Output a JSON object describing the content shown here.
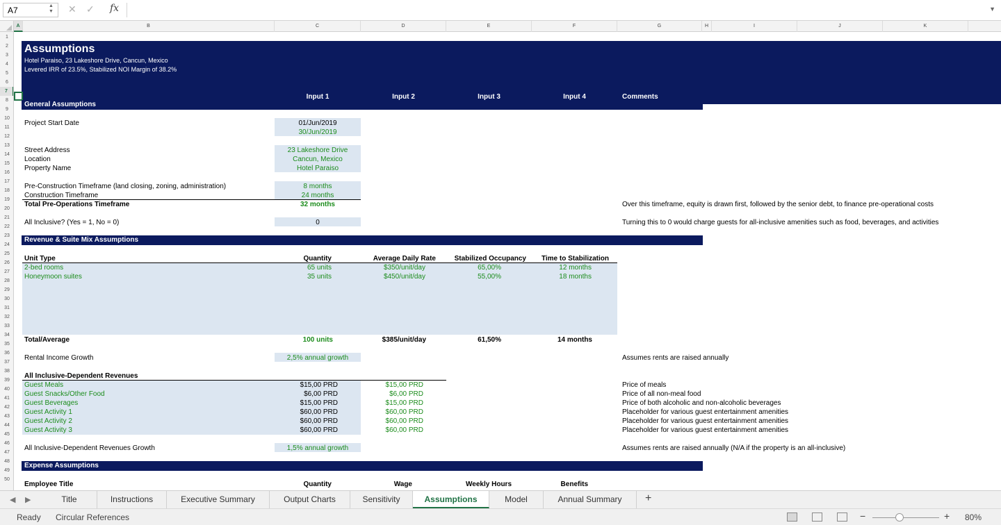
{
  "formula_bar": {
    "name_box": "A7",
    "fx": "fx",
    "cancel": "✕",
    "confirm": "✓"
  },
  "columns": [
    "A",
    "B",
    "C",
    "D",
    "E",
    "F",
    "G",
    "H",
    "I",
    "J",
    "K"
  ],
  "rows": [
    "1",
    "2",
    "3",
    "4",
    "5",
    "6",
    "7",
    "8",
    "9",
    "10",
    "11",
    "12",
    "13",
    "14",
    "15",
    "16",
    "17",
    "18",
    "19",
    "20",
    "21",
    "22",
    "23",
    "24",
    "25",
    "26",
    "27",
    "28",
    "29",
    "30",
    "31",
    "32",
    "33",
    "34",
    "35",
    "36",
    "37",
    "38",
    "39",
    "40",
    "41",
    "42",
    "43",
    "44",
    "45",
    "46",
    "47",
    "48",
    "49",
    "50"
  ],
  "header": {
    "title": "Assumptions",
    "subtitle1": "Hotel Paraiso, 23 Lakeshore Drive, Cancun, Mexico",
    "subtitle2": "Levered IRR of 23.5%, Stabilized NOI Margin of 38.2%",
    "input1": "Input 1",
    "input2": "Input 2",
    "input3": "Input 3",
    "input4": "Input 4",
    "comments": "Comments"
  },
  "general": {
    "section": "General Assumptions",
    "project_start_label": "Project Start Date",
    "project_start": "01/Jun/2019",
    "project_start2": "30/Jun/2019",
    "street_label": "Street Address",
    "street": "23 Lakeshore Drive",
    "location_label": "Location",
    "location": "Cancun, Mexico",
    "property_label": "Property Name",
    "property": "Hotel Paraiso",
    "precon_label": "Pre-Construction Timeframe (land closing, zoning, administration)",
    "precon": "8 months",
    "con_label": "Construction Timeframe",
    "con": "24 months",
    "total_preop_label": "Total Pre-Operations Timeframe",
    "total_preop": "32 months",
    "total_preop_comment": "Over this timeframe, equity is drawn first, followed by the senior debt, to finance pre-operational costs",
    "allinc_label": "All Inclusive? (Yes = 1, No = 0)",
    "allinc": "0",
    "allinc_comment": "Turning this to 0 would charge guests for all-inclusive amenities such as food, beverages, and activities"
  },
  "revenue": {
    "section": "Revenue & Suite Mix Assumptions",
    "h_unit": "Unit Type",
    "h_qty": "Quantity",
    "h_adr": "Average Daily Rate",
    "h_occ": "Stabilized Occupancy",
    "h_time": "Time to Stabilization",
    "units": [
      {
        "type": "2-bed rooms",
        "qty": "65 units",
        "adr": "$350/unit/day",
        "occ": "65,00%",
        "time": "12 months"
      },
      {
        "type": "Honeymoon suites",
        "qty": "35 units",
        "adr": "$450/unit/day",
        "occ": "55,00%",
        "time": "18 months"
      }
    ],
    "total_label": "Total/Average",
    "total_qty": "100 units",
    "total_adr": "$385/unit/day",
    "total_occ": "61,50%",
    "total_time": "14 months",
    "growth_label": "Rental Income Growth",
    "growth": "2,5% annual growth",
    "growth_comment": "Assumes rents are raised annually",
    "aid_label": "All Inclusive-Dependent Revenues",
    "aid": [
      {
        "name": "Guest Meals",
        "in1": "$15,00 PRD",
        "in2": "$15,00 PRD",
        "comment": "Price of meals"
      },
      {
        "name": "Guest Snacks/Other Food",
        "in1": "$6,00 PRD",
        "in2": "$6,00 PRD",
        "comment": "Price of all non-meal food"
      },
      {
        "name": "Guest Beverages",
        "in1": "$15,00 PRD",
        "in2": "$15,00 PRD",
        "comment": "Price of both alcoholic and non-alcoholic beverages"
      },
      {
        "name": "Guest Activity 1",
        "in1": "$60,00 PRD",
        "in2": "$60,00 PRD",
        "comment": "Placeholder for various guest entertainment amenities"
      },
      {
        "name": "Guest Activity 2",
        "in1": "$60,00 PRD",
        "in2": "$60,00 PRD",
        "comment": "Placeholder for various guest entertainment amenities"
      },
      {
        "name": "Guest Activity 3",
        "in1": "$60,00 PRD",
        "in2": "$60,00 PRD",
        "comment": "Placeholder for various guest entertainment amenities"
      }
    ],
    "aid_growth_label": "All Inclusive-Dependent Revenues Growth",
    "aid_growth": "1,5% annual growth",
    "aid_growth_comment": "Assumes rents are raised annually (N/A if the property is an all-inclusive)"
  },
  "expense": {
    "section": "Expense Assumptions",
    "h_title": "Employee Title",
    "h_qty": "Quantity",
    "h_wage": "Wage",
    "h_hours": "Weekly Hours",
    "h_benefits": "Benefits"
  },
  "tabs": [
    "Title",
    "Instructions",
    "Executive Summary",
    "Output Charts",
    "Sensitivity",
    "Assumptions",
    "Model",
    "Annual Summary"
  ],
  "status": {
    "ready": "Ready",
    "circular": "Circular References",
    "zoom": "80%",
    "minus": "−",
    "plus": "+"
  }
}
